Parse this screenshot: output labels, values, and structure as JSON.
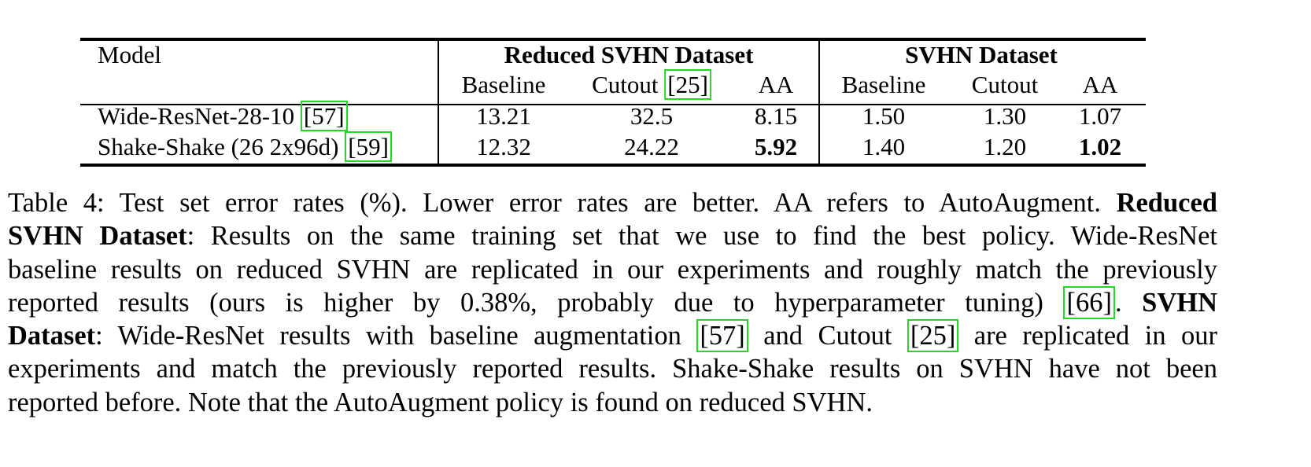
{
  "table": {
    "header_model": "Model",
    "group_reduced": "Reduced SVHN Dataset",
    "group_full": "SVHN Dataset",
    "sub_headers": {
      "reduced_baseline": "Baseline",
      "reduced_cutout": "Cutout",
      "reduced_cutout_cite": "[25]",
      "reduced_aa": "AA",
      "full_baseline": "Baseline",
      "full_cutout": "Cutout",
      "full_aa": "AA"
    },
    "rows": [
      {
        "model": "Wide-ResNet-28-10 ",
        "cite": "[57]",
        "reduced_baseline": "13.21",
        "reduced_cutout": "32.5",
        "reduced_aa": "8.15",
        "full_baseline": "1.50",
        "full_cutout": "1.30",
        "full_aa": "1.07"
      },
      {
        "model": "Shake-Shake (26 2x96d) ",
        "cite": "[59]",
        "reduced_baseline": "12.32",
        "reduced_cutout": "24.22",
        "reduced_aa": "5.92",
        "full_baseline": "1.40",
        "full_cutout": "1.20",
        "full_aa": "1.02"
      }
    ]
  },
  "caption": {
    "l1_a": "Table 4: Test set error rates (%). Lower error rates are better. AA refers to AutoAugment. ",
    "l1_b": "Reduced",
    "l2_a": "SVHN Dataset",
    "l2_b": ": Results on the same training set that we use to find the best policy. Wide-ResNet",
    "l3": "baseline results on reduced SVHN are replicated in our experiments and roughly match the previously",
    "l4_a": "reported results (ours is higher by 0.38%, probably due to hyperparameter tuning) ",
    "l4_cite": "[66]",
    "l4_b": ". ",
    "l4_c": "SVHN",
    "l5_a": "Dataset",
    "l5_b": ": Wide-ResNet results with baseline augmentation ",
    "l5_cite1": "[57]",
    "l5_c": " and Cutout ",
    "l5_cite2": "[25]",
    "l5_d": " are replicated in our",
    "l6": "experiments and match the previously reported results. Shake-Shake results on SVHN have not been",
    "l7": "reported before. Note that the AutoAugment policy is found on reduced SVHN."
  },
  "colors": {
    "citation_box": "#28d428",
    "text": "#000000",
    "background": "#ffffff"
  }
}
